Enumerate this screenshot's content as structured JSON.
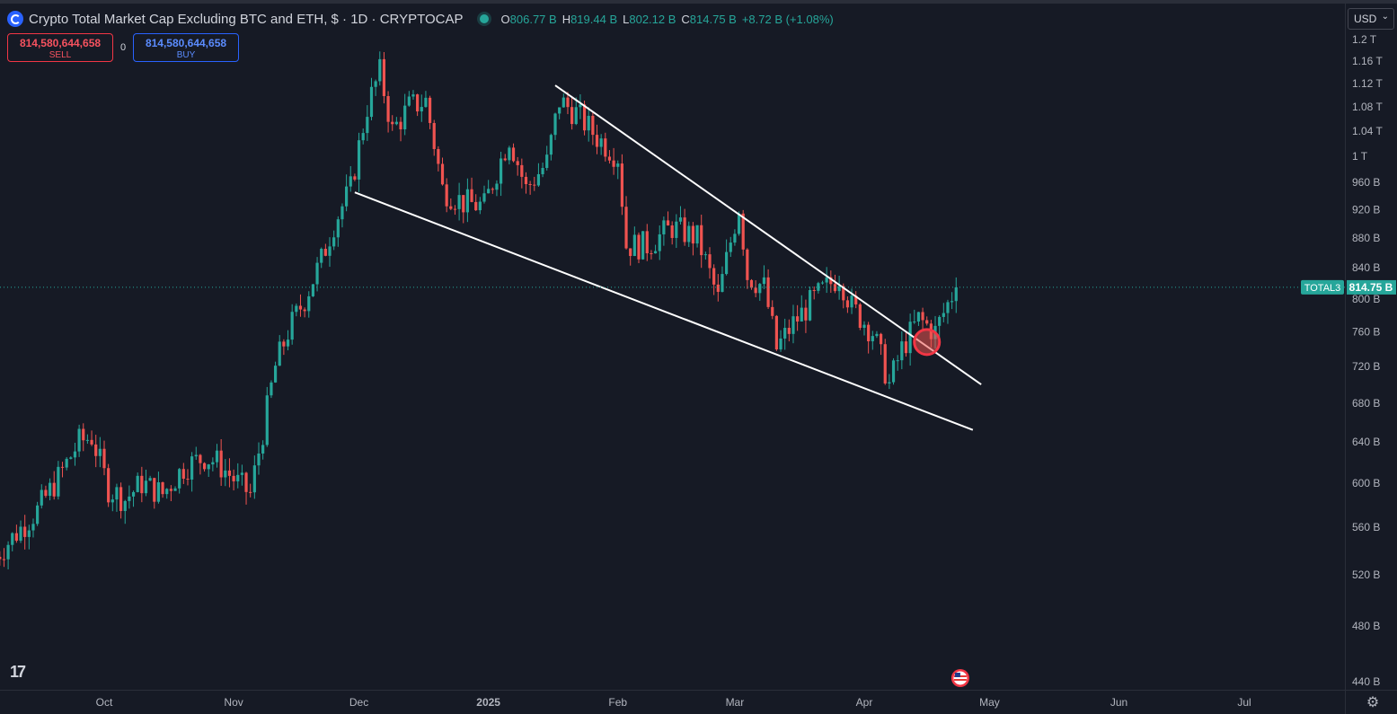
{
  "header": {
    "title": "Crypto Total Market Cap Excluding BTC and ETH, $ · 1D · CRYPTOCAP",
    "ohlc": {
      "o_label": "O",
      "o": "806.77 B",
      "h_label": "H",
      "h": "819.44 B",
      "l_label": "L",
      "l": "802.12 B",
      "c_label": "C",
      "c": "814.75 B",
      "change": "+8.72 B (+1.08%)"
    }
  },
  "trade": {
    "sell_price": "814,580,644,658",
    "sell_label": "SELL",
    "spread": "0",
    "buy_price": "814,580,644,658",
    "buy_label": "BUY"
  },
  "currency": "USD",
  "colors": {
    "up": "#26a69a",
    "down": "#ef5350",
    "background": "#161a25",
    "sell": "#f23645",
    "buy": "#2962ff"
  },
  "chart_data": {
    "type": "candlestick",
    "symbol": "TOTAL3",
    "last_price": "814.75 B",
    "last_value": 814.75,
    "y_unit": "B",
    "y_scale": "log",
    "ylim": [
      430,
      1210
    ],
    "y_ticks": [
      {
        "v": 1200,
        "label": "1.2 T"
      },
      {
        "v": 1160,
        "label": "1.16 T"
      },
      {
        "v": 1120,
        "label": "1.12 T"
      },
      {
        "v": 1080,
        "label": "1.08 T"
      },
      {
        "v": 1040,
        "label": "1.04 T"
      },
      {
        "v": 1000,
        "label": "1 T"
      },
      {
        "v": 960,
        "label": "960 B"
      },
      {
        "v": 920,
        "label": "920 B"
      },
      {
        "v": 880,
        "label": "880 B"
      },
      {
        "v": 840,
        "label": "840 B"
      },
      {
        "v": 800,
        "label": "800 B"
      },
      {
        "v": 760,
        "label": "760 B"
      },
      {
        "v": 720,
        "label": "720 B"
      },
      {
        "v": 680,
        "label": "680 B"
      },
      {
        "v": 640,
        "label": "640 B"
      },
      {
        "v": 600,
        "label": "600 B"
      },
      {
        "v": 560,
        "label": "560 B"
      },
      {
        "v": 520,
        "label": "520 B"
      },
      {
        "v": 480,
        "label": "480 B"
      },
      {
        "v": 440,
        "label": "440 B"
      }
    ],
    "x_ticks": [
      {
        "date": "2024-10-01",
        "label": "Oct"
      },
      {
        "date": "2024-11-01",
        "label": "Nov"
      },
      {
        "date": "2024-12-01",
        "label": "Dec"
      },
      {
        "date": "2025-01-01",
        "label": "2025"
      },
      {
        "date": "2025-02-01",
        "label": "Feb"
      },
      {
        "date": "2025-03-01",
        "label": "Mar"
      },
      {
        "date": "2025-04-01",
        "label": "Apr"
      },
      {
        "date": "2025-05-01",
        "label": "May"
      },
      {
        "date": "2025-06-01",
        "label": "Jun"
      },
      {
        "date": "2025-07-01",
        "label": "Jul"
      }
    ],
    "x_range": [
      "2024-09-05",
      "2025-08-01"
    ],
    "candles_close": [
      {
        "date": "2024-09-05",
        "close": 535
      },
      {
        "date": "2024-09-10",
        "close": 555
      },
      {
        "date": "2024-09-15",
        "close": 575
      },
      {
        "date": "2024-09-20",
        "close": 605
      },
      {
        "date": "2024-09-25",
        "close": 640
      },
      {
        "date": "2024-09-28",
        "close": 645
      },
      {
        "date": "2024-10-02",
        "close": 595
      },
      {
        "date": "2024-10-06",
        "close": 585
      },
      {
        "date": "2024-10-10",
        "close": 600
      },
      {
        "date": "2024-10-15",
        "close": 590
      },
      {
        "date": "2024-10-20",
        "close": 615
      },
      {
        "date": "2024-10-25",
        "close": 625
      },
      {
        "date": "2024-10-28",
        "close": 620
      },
      {
        "date": "2024-11-02",
        "close": 600
      },
      {
        "date": "2024-11-05",
        "close": 590
      },
      {
        "date": "2024-11-08",
        "close": 650
      },
      {
        "date": "2024-11-11",
        "close": 720
      },
      {
        "date": "2024-11-14",
        "close": 760
      },
      {
        "date": "2024-11-18",
        "close": 800
      },
      {
        "date": "2024-11-22",
        "close": 850
      },
      {
        "date": "2024-11-25",
        "close": 900
      },
      {
        "date": "2024-11-29",
        "close": 950
      },
      {
        "date": "2024-12-03",
        "close": 1080
      },
      {
        "date": "2024-12-06",
        "close": 1140
      },
      {
        "date": "2024-12-09",
        "close": 1040
      },
      {
        "date": "2024-12-13",
        "close": 1080
      },
      {
        "date": "2024-12-17",
        "close": 1090
      },
      {
        "date": "2024-12-21",
        "close": 950
      },
      {
        "date": "2024-12-26",
        "close": 930
      },
      {
        "date": "2024-12-31",
        "close": 925
      },
      {
        "date": "2025-01-06",
        "close": 1030
      },
      {
        "date": "2025-01-10",
        "close": 950
      },
      {
        "date": "2025-01-15",
        "close": 990
      },
      {
        "date": "2025-01-18",
        "close": 1090
      },
      {
        "date": "2025-01-22",
        "close": 1070
      },
      {
        "date": "2025-01-27",
        "close": 1030
      },
      {
        "date": "2025-02-01",
        "close": 1000
      },
      {
        "date": "2025-02-03",
        "close": 870
      },
      {
        "date": "2025-02-08",
        "close": 870
      },
      {
        "date": "2025-02-14",
        "close": 895
      },
      {
        "date": "2025-02-20",
        "close": 880
      },
      {
        "date": "2025-02-25",
        "close": 800
      },
      {
        "date": "2025-03-02",
        "close": 925
      },
      {
        "date": "2025-03-04",
        "close": 830
      },
      {
        "date": "2025-03-08",
        "close": 815
      },
      {
        "date": "2025-03-11",
        "close": 740
      },
      {
        "date": "2025-03-15",
        "close": 770
      },
      {
        "date": "2025-03-20",
        "close": 800
      },
      {
        "date": "2025-03-26",
        "close": 830
      },
      {
        "date": "2025-03-29",
        "close": 790
      },
      {
        "date": "2025-04-03",
        "close": 760
      },
      {
        "date": "2025-04-07",
        "close": 700
      },
      {
        "date": "2025-04-10",
        "close": 740
      },
      {
        "date": "2025-04-14",
        "close": 775
      },
      {
        "date": "2025-04-18",
        "close": 760
      },
      {
        "date": "2025-04-22",
        "close": 805
      },
      {
        "date": "2025-04-23",
        "close": 814.75
      }
    ],
    "trendlines": [
      {
        "from": {
          "date": "2024-11-30",
          "value": 945
        },
        "to": {
          "date": "2025-04-27",
          "value": 652
        }
      },
      {
        "from": {
          "date": "2025-01-17",
          "value": 1117
        },
        "to": {
          "date": "2025-04-29",
          "value": 700
        }
      }
    ],
    "annotation": {
      "date": "2025-04-16",
      "value": 748,
      "marker": "red-circle"
    },
    "event_icon": {
      "date": "2025-04-24",
      "icon": "us-flag-icon"
    }
  }
}
